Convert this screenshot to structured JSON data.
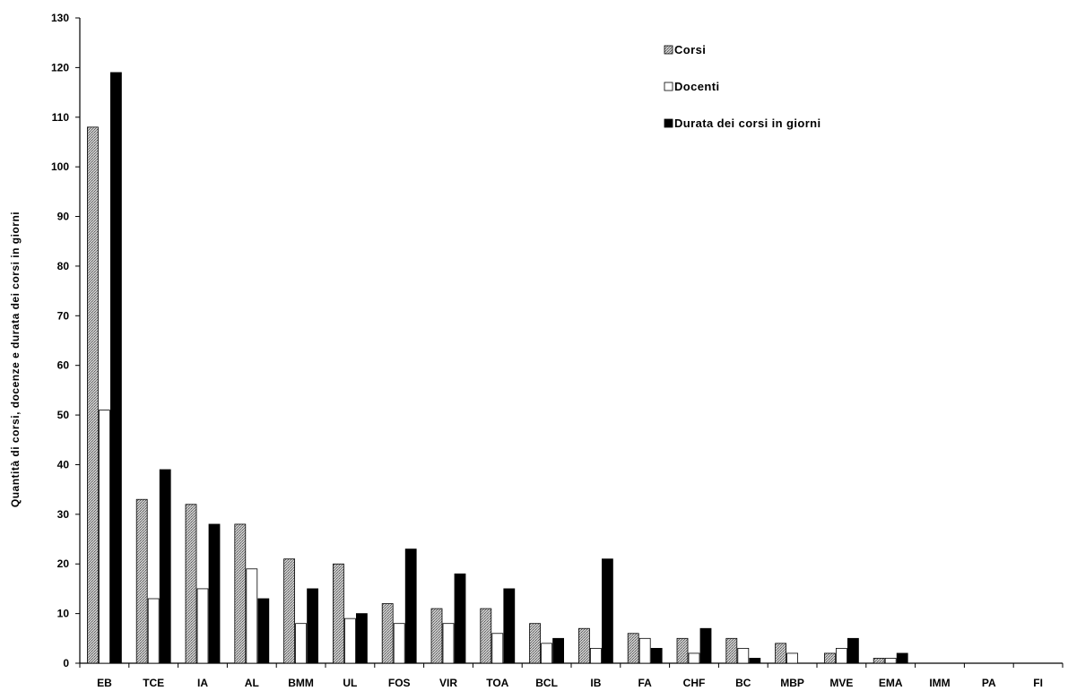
{
  "chart_data": {
    "type": "bar",
    "title": "",
    "xlabel": "",
    "ylabel": "Quantità di corsi, docenze e durata dei corsi in giorni",
    "ylim": [
      0,
      130
    ],
    "yticks": [
      0,
      10,
      20,
      30,
      40,
      50,
      60,
      70,
      80,
      90,
      100,
      110,
      120,
      130
    ],
    "grid": false,
    "legend_position": "top-right",
    "categories": [
      "EB",
      "TCE",
      "IA",
      "AL",
      "BMM",
      "UL",
      "FOS",
      "VIR",
      "TOA",
      "BCL",
      "IB",
      "FA",
      "CHF",
      "BC",
      "MBP",
      "MVE",
      "EMA",
      "IMM",
      "PA",
      "FI"
    ],
    "series": [
      {
        "name": "Corsi",
        "fill": "hatched-gray",
        "color": "#a8a8a8",
        "values": [
          108,
          33,
          32,
          28,
          21,
          20,
          12,
          11,
          11,
          8,
          7,
          6,
          5,
          5,
          4,
          2,
          1,
          0,
          0,
          0
        ]
      },
      {
        "name": "Docenti",
        "fill": "white",
        "color": "#ffffff",
        "values": [
          51,
          13,
          15,
          19,
          8,
          9,
          8,
          8,
          6,
          4,
          3,
          5,
          2,
          3,
          2,
          3,
          1,
          0,
          0,
          0
        ]
      },
      {
        "name": "Durata dei corsi in giorni",
        "fill": "black",
        "color": "#000000",
        "values": [
          119,
          39,
          28,
          13,
          15,
          10,
          23,
          18,
          15,
          5,
          21,
          3,
          7,
          1,
          0,
          5,
          2,
          0,
          0,
          0
        ]
      }
    ]
  }
}
